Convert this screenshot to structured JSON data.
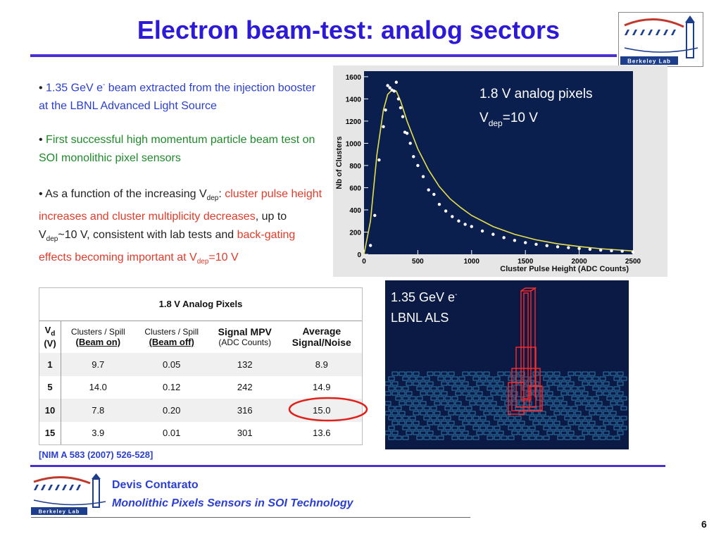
{
  "slide": {
    "title": "Electron beam-test: analog sectors",
    "page_number": "6"
  },
  "logo": {
    "text": "Berkeley Lab"
  },
  "bullets": [
    {
      "pre": "1.35 GeV e",
      "sup": "-",
      "post": " beam extracted from the injection booster at the LBNL Advanced Light Source"
    },
    {
      "text": "First successful high momentum particle beam test on SOI monolithic pixel sensors"
    },
    {
      "a": "As a function of the increasing V",
      "a_sub": "dep",
      "b": ": ",
      "c_red": "cluster pulse height increases and cluster multiplicity decreases",
      "d": ", up to V",
      "d_sub": "dep",
      "e": "~10 V, consistent with lab tests and ",
      "f_red": "back-gating effects becoming important at V",
      "f_sub": "dep",
      "g_red": "=10 V"
    }
  ],
  "chart": {
    "annotation_line1": "1.8 V analog pixels",
    "annotation_line2_pre": "V",
    "annotation_line2_sub": "dep",
    "annotation_line2_post": "=10 V",
    "xlabel": "Cluster Pulse Height (ADC Counts)",
    "ylabel": "Nb of Clusters"
  },
  "chart_data": {
    "type": "scatter",
    "title": "",
    "xlabel": "Cluster Pulse Height (ADC Counts)",
    "ylabel": "Nb of Clusters",
    "xlim": [
      0,
      2500
    ],
    "ylim": [
      0,
      1650
    ],
    "xticks": [
      0,
      500,
      1000,
      1500,
      2000,
      2500
    ],
    "yticks": [
      0,
      200,
      400,
      600,
      800,
      1000,
      1200,
      1400,
      1600
    ],
    "series": [
      {
        "x": [
          60,
          100,
          140,
          180,
          200,
          220,
          240,
          260,
          280,
          300,
          320,
          340,
          360,
          380,
          400,
          430,
          460,
          500,
          550,
          600,
          650,
          700,
          760,
          820,
          880,
          940,
          1000,
          1100,
          1200,
          1300,
          1400,
          1500,
          1600,
          1700,
          1800,
          1900,
          2000,
          2100,
          2200,
          2300,
          2400,
          2500
        ],
        "y": [
          80,
          350,
          850,
          1150,
          1300,
          1520,
          1500,
          1480,
          1470,
          1550,
          1400,
          1320,
          1240,
          1100,
          1090,
          1000,
          880,
          800,
          700,
          580,
          540,
          450,
          390,
          340,
          300,
          270,
          250,
          210,
          180,
          150,
          125,
          105,
          90,
          78,
          68,
          60,
          52,
          45,
          38,
          32,
          28,
          20
        ]
      },
      {
        "x": [
          0,
          60,
          120,
          180,
          220,
          260,
          300,
          340,
          400,
          500,
          600,
          700,
          800,
          900,
          1000,
          1200,
          1400,
          1600,
          1800,
          2000,
          2200,
          2500
        ],
        "y": [
          0,
          300,
          900,
          1300,
          1440,
          1480,
          1470,
          1380,
          1200,
          950,
          760,
          610,
          500,
          420,
          350,
          250,
          180,
          130,
          95,
          70,
          50,
          30
        ]
      }
    ]
  },
  "table": {
    "title": "1.8 V Analog Pixels",
    "headers": {
      "vd_top": "V",
      "vd_sub": "d",
      "vd_unit": "(V)",
      "c1_top": "Clusters / Spill",
      "c1_bot": "(Beam on)",
      "c2_top": "Clusters / Spill",
      "c2_bot": "(Beam off)",
      "c3_top": "Signal MPV",
      "c3_bot": "(ADC Counts)",
      "c4_top": "Average",
      "c4_bot": "Signal/Noise"
    },
    "rows": [
      [
        "1",
        "9.7",
        "0.05",
        "132",
        "8.9"
      ],
      [
        "5",
        "14.0",
        "0.12",
        "242",
        "14.9"
      ],
      [
        "10",
        "7.8",
        "0.20",
        "316",
        "15.0"
      ],
      [
        "15",
        "3.9",
        "0.01",
        "301",
        "13.6"
      ]
    ]
  },
  "event_display": {
    "line1_pre": "1.35 GeV e",
    "line1_sup": "-",
    "line2": "LBNL ALS"
  },
  "reference": "[NIM A 583 (2007) 526-528]",
  "footer": {
    "author": "Devis Contarato",
    "talk_title": "Monolithic Pixels Sensors in SOI Technology"
  }
}
